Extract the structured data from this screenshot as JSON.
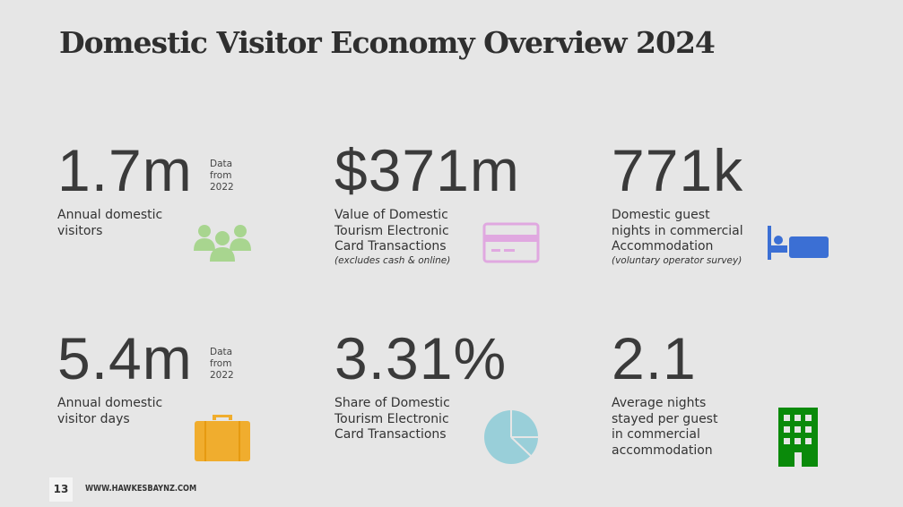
{
  "title": "Domestic Visitor Economy Overview 2024",
  "stats": [
    {
      "value": "1.7m",
      "side_note": "Data from 2022",
      "label": [
        "Annual domestic",
        "visitors"
      ]
    },
    {
      "value": "$371m",
      "label": [
        "Value of Domestic",
        "Tourism Electronic",
        "Card Transactions"
      ],
      "note": "(excludes cash & online)"
    },
    {
      "value": "771k",
      "label": [
        "Domestic guest",
        "nights in commercial",
        "Accommodation"
      ],
      "note": "(voluntary operator survey)"
    },
    {
      "value": "5.4m",
      "side_note": "Data from 2022",
      "label": [
        "Annual domestic",
        "visitor days"
      ]
    },
    {
      "value": "3.31%",
      "label": [
        "Share of Domestic",
        "Tourism Electronic",
        "Card Transactions"
      ]
    },
    {
      "value": "2.1",
      "label": [
        "Average nights",
        "stayed per guest",
        "in commercial",
        "accommodation"
      ]
    }
  ],
  "footer": {
    "page": "13",
    "url": "WWW.HAWKESBAYNZ.COM"
  }
}
